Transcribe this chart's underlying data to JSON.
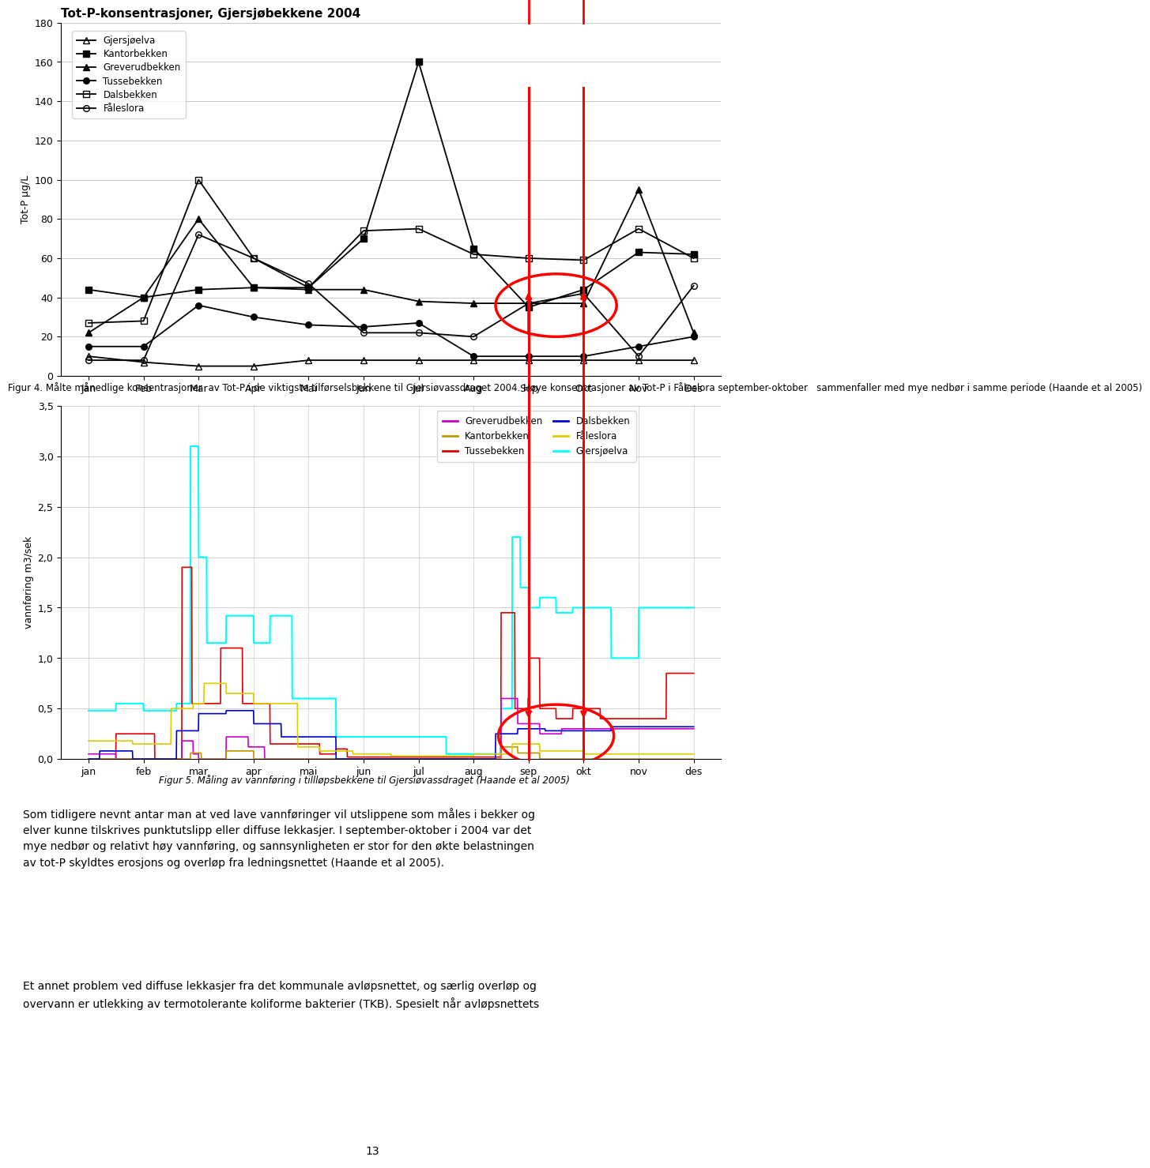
{
  "fig1_title": "Tot-P-konsentrasjoner, Gjersjøbekkene 2004",
  "fig1_ylabel": "Tot-P μg/L",
  "fig1_xlabel_ticks": [
    "Jan",
    "Feb",
    "Mar",
    "Apr",
    "Mai",
    "Jun",
    "Jul",
    "Aug",
    "Sep",
    "Okt",
    "Nov",
    "Des"
  ],
  "fig1_ylim": [
    0,
    180
  ],
  "fig1_yticks": [
    0,
    20,
    40,
    60,
    80,
    100,
    120,
    140,
    160,
    180
  ],
  "fig1_gjersjøelva": [
    10,
    7,
    5,
    5,
    8,
    8,
    8,
    8,
    8,
    8,
    8,
    8
  ],
  "fig1_kantorbekken": [
    44,
    40,
    44,
    45,
    45,
    70,
    160,
    65,
    35,
    44,
    63,
    62
  ],
  "fig1_greverudbekken": [
    22,
    40,
    80,
    45,
    44,
    44,
    38,
    37,
    37,
    37,
    95,
    22
  ],
  "fig1_tussebekken": [
    15,
    15,
    36,
    30,
    26,
    25,
    27,
    10,
    10,
    10,
    15,
    20
  ],
  "fig1_dalsbekken": [
    27,
    28,
    100,
    60,
    45,
    74,
    75,
    62,
    60,
    59,
    75,
    60
  ],
  "fig1_faleslora": [
    8,
    8,
    72,
    60,
    47,
    22,
    22,
    20,
    37,
    42,
    10,
    46
  ],
  "fig2_ylabel": "vannføring m3/sek",
  "fig2_xlabel_ticks": [
    "jan",
    "feb",
    "mar",
    "apr",
    "mai",
    "jun",
    "jul",
    "aug",
    "sep",
    "okt",
    "nov",
    "des"
  ],
  "fig2_ylim": [
    0.0,
    3.5
  ],
  "fig2_yticks": [
    0.0,
    0.5,
    1.0,
    1.5,
    2.0,
    2.5,
    3.0,
    3.5
  ],
  "fig1_caption": "Figur 4. Målte månedlige konsentrasjoner  av Tot-P i de viktigste tilførselsbekkene til Gjersiøvassdraget 2004. Høye konsentrasjoner av Tot-P i Fåleslora september-oktober   sammenfaller med mye nedbør i samme periode (Haande et al 2005)",
  "fig2_caption": "Figur 5. Måling av vannføring i tillløpsbekkene til Gjersiøvassdraget (Haande et al 2005)",
  "body_text1": "Som tidligere nevnt antar man at ved lave vannføringer vil utslippene som måles i bekker og elver kunne tilskrives punktutslipp eller diffuse lekkasjer. I september-oktober i 2004 var det mye nedbør og relativt høy vannføring, og sannsynligheten er stor for den økte belastningen av tot-P skyldtes erosjons og overløp fra ledningsnettet (Haande et al 2005).",
  "body_text2": "Et annet problem ved diffuse lekkasjer fra det kommunale avløpsnettet, og særlig overløp og overvann er utlekking av termotolerante koliforme bakterier (TKB). Spesielt når avløpsnettets",
  "page_number": "13"
}
